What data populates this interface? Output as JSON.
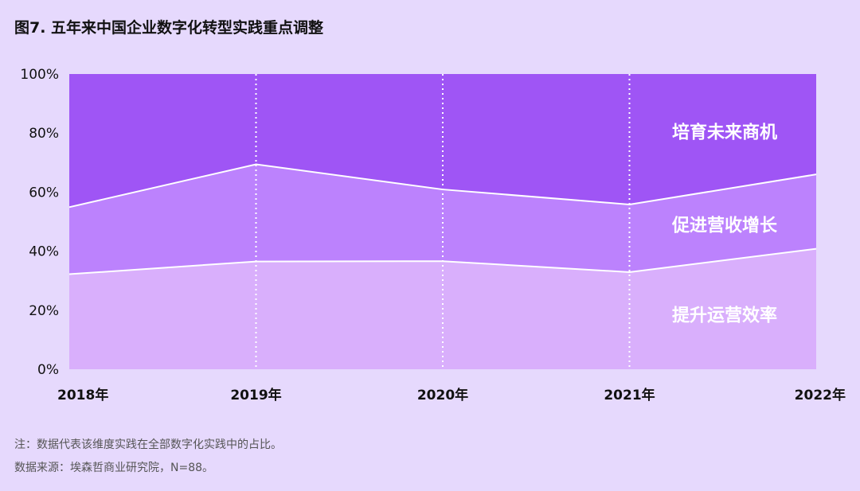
{
  "title": "图7. 五年来中国企业数字化转型实践重点调整",
  "chart_data": {
    "type": "area",
    "stacked": true,
    "title": "图7. 五年来中国企业数字化转型实践重点调整",
    "categories": [
      "2018年",
      "2019年",
      "2020年",
      "2021年",
      "2022年"
    ],
    "ylim": [
      0,
      100
    ],
    "yticks": [
      "0%",
      "20%",
      "40%",
      "60%",
      "80%",
      "100%"
    ],
    "ytick_values": [
      0,
      20,
      40,
      60,
      80,
      100
    ],
    "grid": "vertical dotted lines at 2019–2021",
    "series": [
      {
        "name": "提升运营效率",
        "values": [
          32.2,
          36.5,
          36.6,
          32.9,
          40.8
        ],
        "color": "#d9affc"
      },
      {
        "name": "促进营收增长",
        "values": [
          22.7,
          32.9,
          24.3,
          22.9,
          25.2
        ],
        "color": "#bc82fd"
      },
      {
        "name": "培育未来商机",
        "values": [
          45.1,
          30.6,
          39.1,
          44.2,
          34.0
        ],
        "color": "#9f55f5"
      }
    ]
  },
  "footnotes": {
    "note": "注：数据代表该维度实践在全部数字化实践中的占比。",
    "source": "数据来源：埃森哲商业研究院，N=88。"
  }
}
